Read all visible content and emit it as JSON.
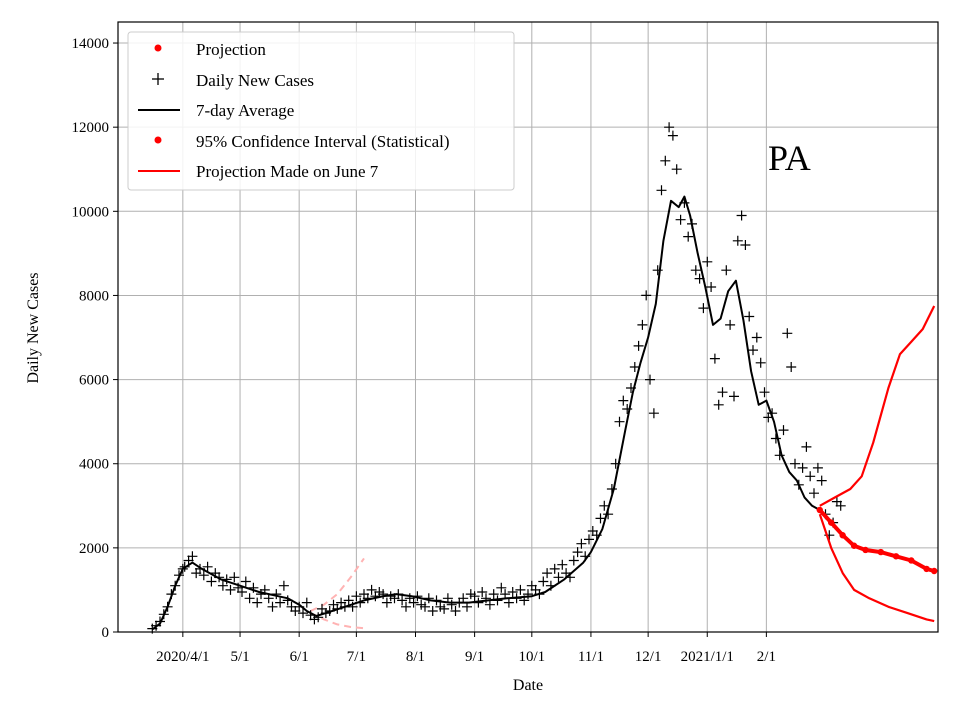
{
  "chart_data": {
    "type": "line",
    "region_label": "PA",
    "xlabel": "Date",
    "ylabel": "Daily New Cases",
    "ylim": [
      0,
      14500
    ],
    "y_ticks": [
      0,
      2000,
      4000,
      6000,
      8000,
      10000,
      12000,
      14000
    ],
    "x_ticks": [
      {
        "label": "2020/4/1",
        "day": 0
      },
      {
        "label": "5/1",
        "day": 30
      },
      {
        "label": "6/1",
        "day": 61
      },
      {
        "label": "7/1",
        "day": 91
      },
      {
        "label": "8/1",
        "day": 122
      },
      {
        "label": "9/1",
        "day": 153
      },
      {
        "label": "10/1",
        "day": 183
      },
      {
        "label": "11/1",
        "day": 214
      },
      {
        "label": "12/1",
        "day": 244
      },
      {
        "label": "2021/1/1",
        "day": 275
      },
      {
        "label": "2/1",
        "day": 306
      }
    ],
    "x_unit": "days since 2020-04-01",
    "xlim": [
      -34,
      396
    ],
    "grid": true,
    "legend": {
      "position": "top-left",
      "entries": [
        {
          "label": "Projection",
          "style": "dot",
          "color": "#ff0000"
        },
        {
          "label": "Daily New Cases",
          "style": "plus",
          "color": "#000000"
        },
        {
          "label": "7-day Average",
          "style": "line",
          "color": "#000000"
        },
        {
          "label": "95% Confidence Interval (Statistical)",
          "style": "dot",
          "color": "#ff0000"
        },
        {
          "label": "Projection Made on June 7",
          "style": "line",
          "color": "#ff0000"
        }
      ]
    },
    "series": [
      {
        "name": "7-day Average",
        "color": "#000000",
        "points": [
          [
            -16,
            60
          ],
          [
            -12,
            200
          ],
          [
            -8,
            600
          ],
          [
            -4,
            1100
          ],
          [
            0,
            1500
          ],
          [
            5,
            1650
          ],
          [
            10,
            1500
          ],
          [
            20,
            1250
          ],
          [
            30,
            1100
          ],
          [
            40,
            950
          ],
          [
            50,
            850
          ],
          [
            55,
            800
          ],
          [
            61,
            650
          ],
          [
            65,
            500
          ],
          [
            70,
            380
          ],
          [
            75,
            450
          ],
          [
            85,
            600
          ],
          [
            95,
            750
          ],
          [
            105,
            850
          ],
          [
            112,
            900
          ],
          [
            120,
            850
          ],
          [
            130,
            750
          ],
          [
            140,
            700
          ],
          [
            150,
            700
          ],
          [
            160,
            750
          ],
          [
            170,
            800
          ],
          [
            183,
            850
          ],
          [
            190,
            950
          ],
          [
            200,
            1250
          ],
          [
            210,
            1650
          ],
          [
            214,
            1900
          ],
          [
            220,
            2450
          ],
          [
            226,
            3400
          ],
          [
            232,
            4800
          ],
          [
            236,
            5700
          ],
          [
            240,
            6400
          ],
          [
            244,
            7000
          ],
          [
            248,
            7800
          ],
          [
            252,
            9300
          ],
          [
            256,
            10250
          ],
          [
            260,
            10100
          ],
          [
            263,
            10350
          ],
          [
            266,
            9900
          ],
          [
            270,
            9000
          ],
          [
            274,
            8200
          ],
          [
            278,
            7300
          ],
          [
            282,
            7450
          ],
          [
            286,
            8100
          ],
          [
            290,
            8350
          ],
          [
            294,
            7400
          ],
          [
            298,
            6200
          ],
          [
            302,
            5400
          ],
          [
            306,
            5500
          ],
          [
            310,
            5000
          ],
          [
            314,
            4200
          ],
          [
            318,
            3800
          ],
          [
            322,
            3600
          ],
          [
            326,
            3200
          ],
          [
            330,
            3000
          ],
          [
            334,
            2900
          ]
        ]
      },
      {
        "name": "Projection",
        "color": "#ff0000",
        "points": [
          [
            334,
            2900
          ],
          [
            340,
            2600
          ],
          [
            346,
            2300
          ],
          [
            352,
            2050
          ],
          [
            358,
            1950
          ],
          [
            366,
            1900
          ],
          [
            374,
            1800
          ],
          [
            382,
            1700
          ],
          [
            390,
            1500
          ],
          [
            394,
            1450
          ]
        ]
      },
      {
        "name": "95% CI upper",
        "color": "#ff0000",
        "points": [
          [
            334,
            3000
          ],
          [
            342,
            3200
          ],
          [
            350,
            3400
          ],
          [
            356,
            3700
          ],
          [
            362,
            4500
          ],
          [
            370,
            5800
          ],
          [
            376,
            6600
          ],
          [
            382,
            6900
          ],
          [
            388,
            7200
          ],
          [
            394,
            7750
          ]
        ]
      },
      {
        "name": "95% CI lower",
        "color": "#ff0000",
        "points": [
          [
            334,
            2800
          ],
          [
            340,
            2000
          ],
          [
            346,
            1400
          ],
          [
            352,
            1000
          ],
          [
            360,
            800
          ],
          [
            370,
            600
          ],
          [
            380,
            450
          ],
          [
            390,
            300
          ],
          [
            394,
            260
          ]
        ]
      },
      {
        "name": "Projection Made on June 7 (upper)",
        "color": "#ffb3b3",
        "points": [
          [
            67,
            500
          ],
          [
            74,
            650
          ],
          [
            81,
            900
          ],
          [
            88,
            1300
          ],
          [
            95,
            1750
          ]
        ]
      },
      {
        "name": "Projection Made on June 7 (lower)",
        "color": "#ffb3b3",
        "points": [
          [
            67,
            450
          ],
          [
            74,
            300
          ],
          [
            81,
            180
          ],
          [
            88,
            120
          ],
          [
            95,
            90
          ]
        ]
      },
      {
        "name": "Daily New Cases",
        "color": "#000000",
        "points": [
          [
            -16,
            80
          ],
          [
            -14,
            150
          ],
          [
            -12,
            250
          ],
          [
            -10,
            420
          ],
          [
            -8,
            600
          ],
          [
            -6,
            900
          ],
          [
            -4,
            1100
          ],
          [
            -2,
            1350
          ],
          [
            0,
            1500
          ],
          [
            1,
            1550
          ],
          [
            3,
            1700
          ],
          [
            5,
            1800
          ],
          [
            7,
            1400
          ],
          [
            9,
            1500
          ],
          [
            11,
            1350
          ],
          [
            13,
            1550
          ],
          [
            15,
            1200
          ],
          [
            17,
            1400
          ],
          [
            19,
            1300
          ],
          [
            21,
            1100
          ],
          [
            23,
            1250
          ],
          [
            25,
            1000
          ],
          [
            27,
            1300
          ],
          [
            29,
            1050
          ],
          [
            31,
            950
          ],
          [
            33,
            1200
          ],
          [
            35,
            800
          ],
          [
            37,
            1050
          ],
          [
            39,
            700
          ],
          [
            41,
            900
          ],
          [
            43,
            1000
          ],
          [
            45,
            800
          ],
          [
            47,
            600
          ],
          [
            49,
            900
          ],
          [
            51,
            700
          ],
          [
            53,
            1100
          ],
          [
            55,
            750
          ],
          [
            57,
            600
          ],
          [
            59,
            500
          ],
          [
            61,
            600
          ],
          [
            63,
            450
          ],
          [
            65,
            700
          ],
          [
            67,
            400
          ],
          [
            69,
            300
          ],
          [
            71,
            350
          ],
          [
            73,
            550
          ],
          [
            75,
            450
          ],
          [
            77,
            500
          ],
          [
            79,
            650
          ],
          [
            81,
            550
          ],
          [
            83,
            700
          ],
          [
            85,
            600
          ],
          [
            87,
            750
          ],
          [
            89,
            600
          ],
          [
            91,
            850
          ],
          [
            93,
            700
          ],
          [
            95,
            900
          ],
          [
            97,
            800
          ],
          [
            99,
            1000
          ],
          [
            101,
            850
          ],
          [
            103,
            950
          ],
          [
            105,
            900
          ],
          [
            107,
            700
          ],
          [
            109,
            850
          ],
          [
            111,
            800
          ],
          [
            113,
            900
          ],
          [
            115,
            750
          ],
          [
            117,
            600
          ],
          [
            119,
            800
          ],
          [
            121,
            700
          ],
          [
            123,
            850
          ],
          [
            125,
            650
          ],
          [
            127,
            600
          ],
          [
            129,
            800
          ],
          [
            131,
            500
          ],
          [
            133,
            750
          ],
          [
            135,
            600
          ],
          [
            137,
            550
          ],
          [
            139,
            800
          ],
          [
            141,
            650
          ],
          [
            143,
            500
          ],
          [
            145,
            700
          ],
          [
            147,
            800
          ],
          [
            149,
            600
          ],
          [
            151,
            900
          ],
          [
            153,
            850
          ],
          [
            155,
            700
          ],
          [
            157,
            950
          ],
          [
            159,
            800
          ],
          [
            161,
            650
          ],
          [
            163,
            900
          ],
          [
            165,
            750
          ],
          [
            167,
            1050
          ],
          [
            169,
            900
          ],
          [
            171,
            700
          ],
          [
            173,
            950
          ],
          [
            175,
            800
          ],
          [
            177,
            1000
          ],
          [
            179,
            750
          ],
          [
            181,
            900
          ],
          [
            183,
            1100
          ],
          [
            185,
            1000
          ],
          [
            187,
            900
          ],
          [
            189,
            1200
          ],
          [
            191,
            1400
          ],
          [
            193,
            1100
          ],
          [
            195,
            1500
          ],
          [
            197,
            1300
          ],
          [
            199,
            1600
          ],
          [
            201,
            1400
          ],
          [
            203,
            1300
          ],
          [
            205,
            1700
          ],
          [
            207,
            1900
          ],
          [
            209,
            2100
          ],
          [
            211,
            1800
          ],
          [
            213,
            2200
          ],
          [
            215,
            2400
          ],
          [
            217,
            2300
          ],
          [
            219,
            2700
          ],
          [
            221,
            3000
          ],
          [
            223,
            2800
          ],
          [
            225,
            3400
          ],
          [
            227,
            4000
          ],
          [
            229,
            5000
          ],
          [
            231,
            5500
          ],
          [
            233,
            5300
          ],
          [
            235,
            5800
          ],
          [
            237,
            6300
          ],
          [
            239,
            6800
          ],
          [
            241,
            7300
          ],
          [
            243,
            8000
          ],
          [
            245,
            6000
          ],
          [
            247,
            5200
          ],
          [
            249,
            8600
          ],
          [
            251,
            10500
          ],
          [
            253,
            11200
          ],
          [
            255,
            12000
          ],
          [
            257,
            11800
          ],
          [
            259,
            11000
          ],
          [
            261,
            9800
          ],
          [
            263,
            10200
          ],
          [
            265,
            9400
          ],
          [
            267,
            9700
          ],
          [
            269,
            8600
          ],
          [
            271,
            8400
          ],
          [
            273,
            7700
          ],
          [
            275,
            8800
          ],
          [
            277,
            8200
          ],
          [
            279,
            6500
          ],
          [
            281,
            5400
          ],
          [
            283,
            5700
          ],
          [
            285,
            8600
          ],
          [
            287,
            7300
          ],
          [
            289,
            5600
          ],
          [
            291,
            9300
          ],
          [
            293,
            9900
          ],
          [
            295,
            9200
          ],
          [
            297,
            7500
          ],
          [
            299,
            6700
          ],
          [
            301,
            7000
          ],
          [
            303,
            6400
          ],
          [
            305,
            5700
          ],
          [
            307,
            5100
          ],
          [
            309,
            5200
          ],
          [
            311,
            4600
          ],
          [
            313,
            4200
          ],
          [
            315,
            4800
          ],
          [
            317,
            7100
          ],
          [
            319,
            6300
          ],
          [
            321,
            4000
          ],
          [
            323,
            3500
          ],
          [
            325,
            3900
          ],
          [
            327,
            4400
          ],
          [
            329,
            3700
          ],
          [
            331,
            3300
          ],
          [
            333,
            3900
          ],
          [
            335,
            3600
          ],
          [
            337,
            2800
          ],
          [
            339,
            2300
          ],
          [
            341,
            2600
          ],
          [
            343,
            3100
          ],
          [
            345,
            3000
          ]
        ]
      }
    ]
  }
}
